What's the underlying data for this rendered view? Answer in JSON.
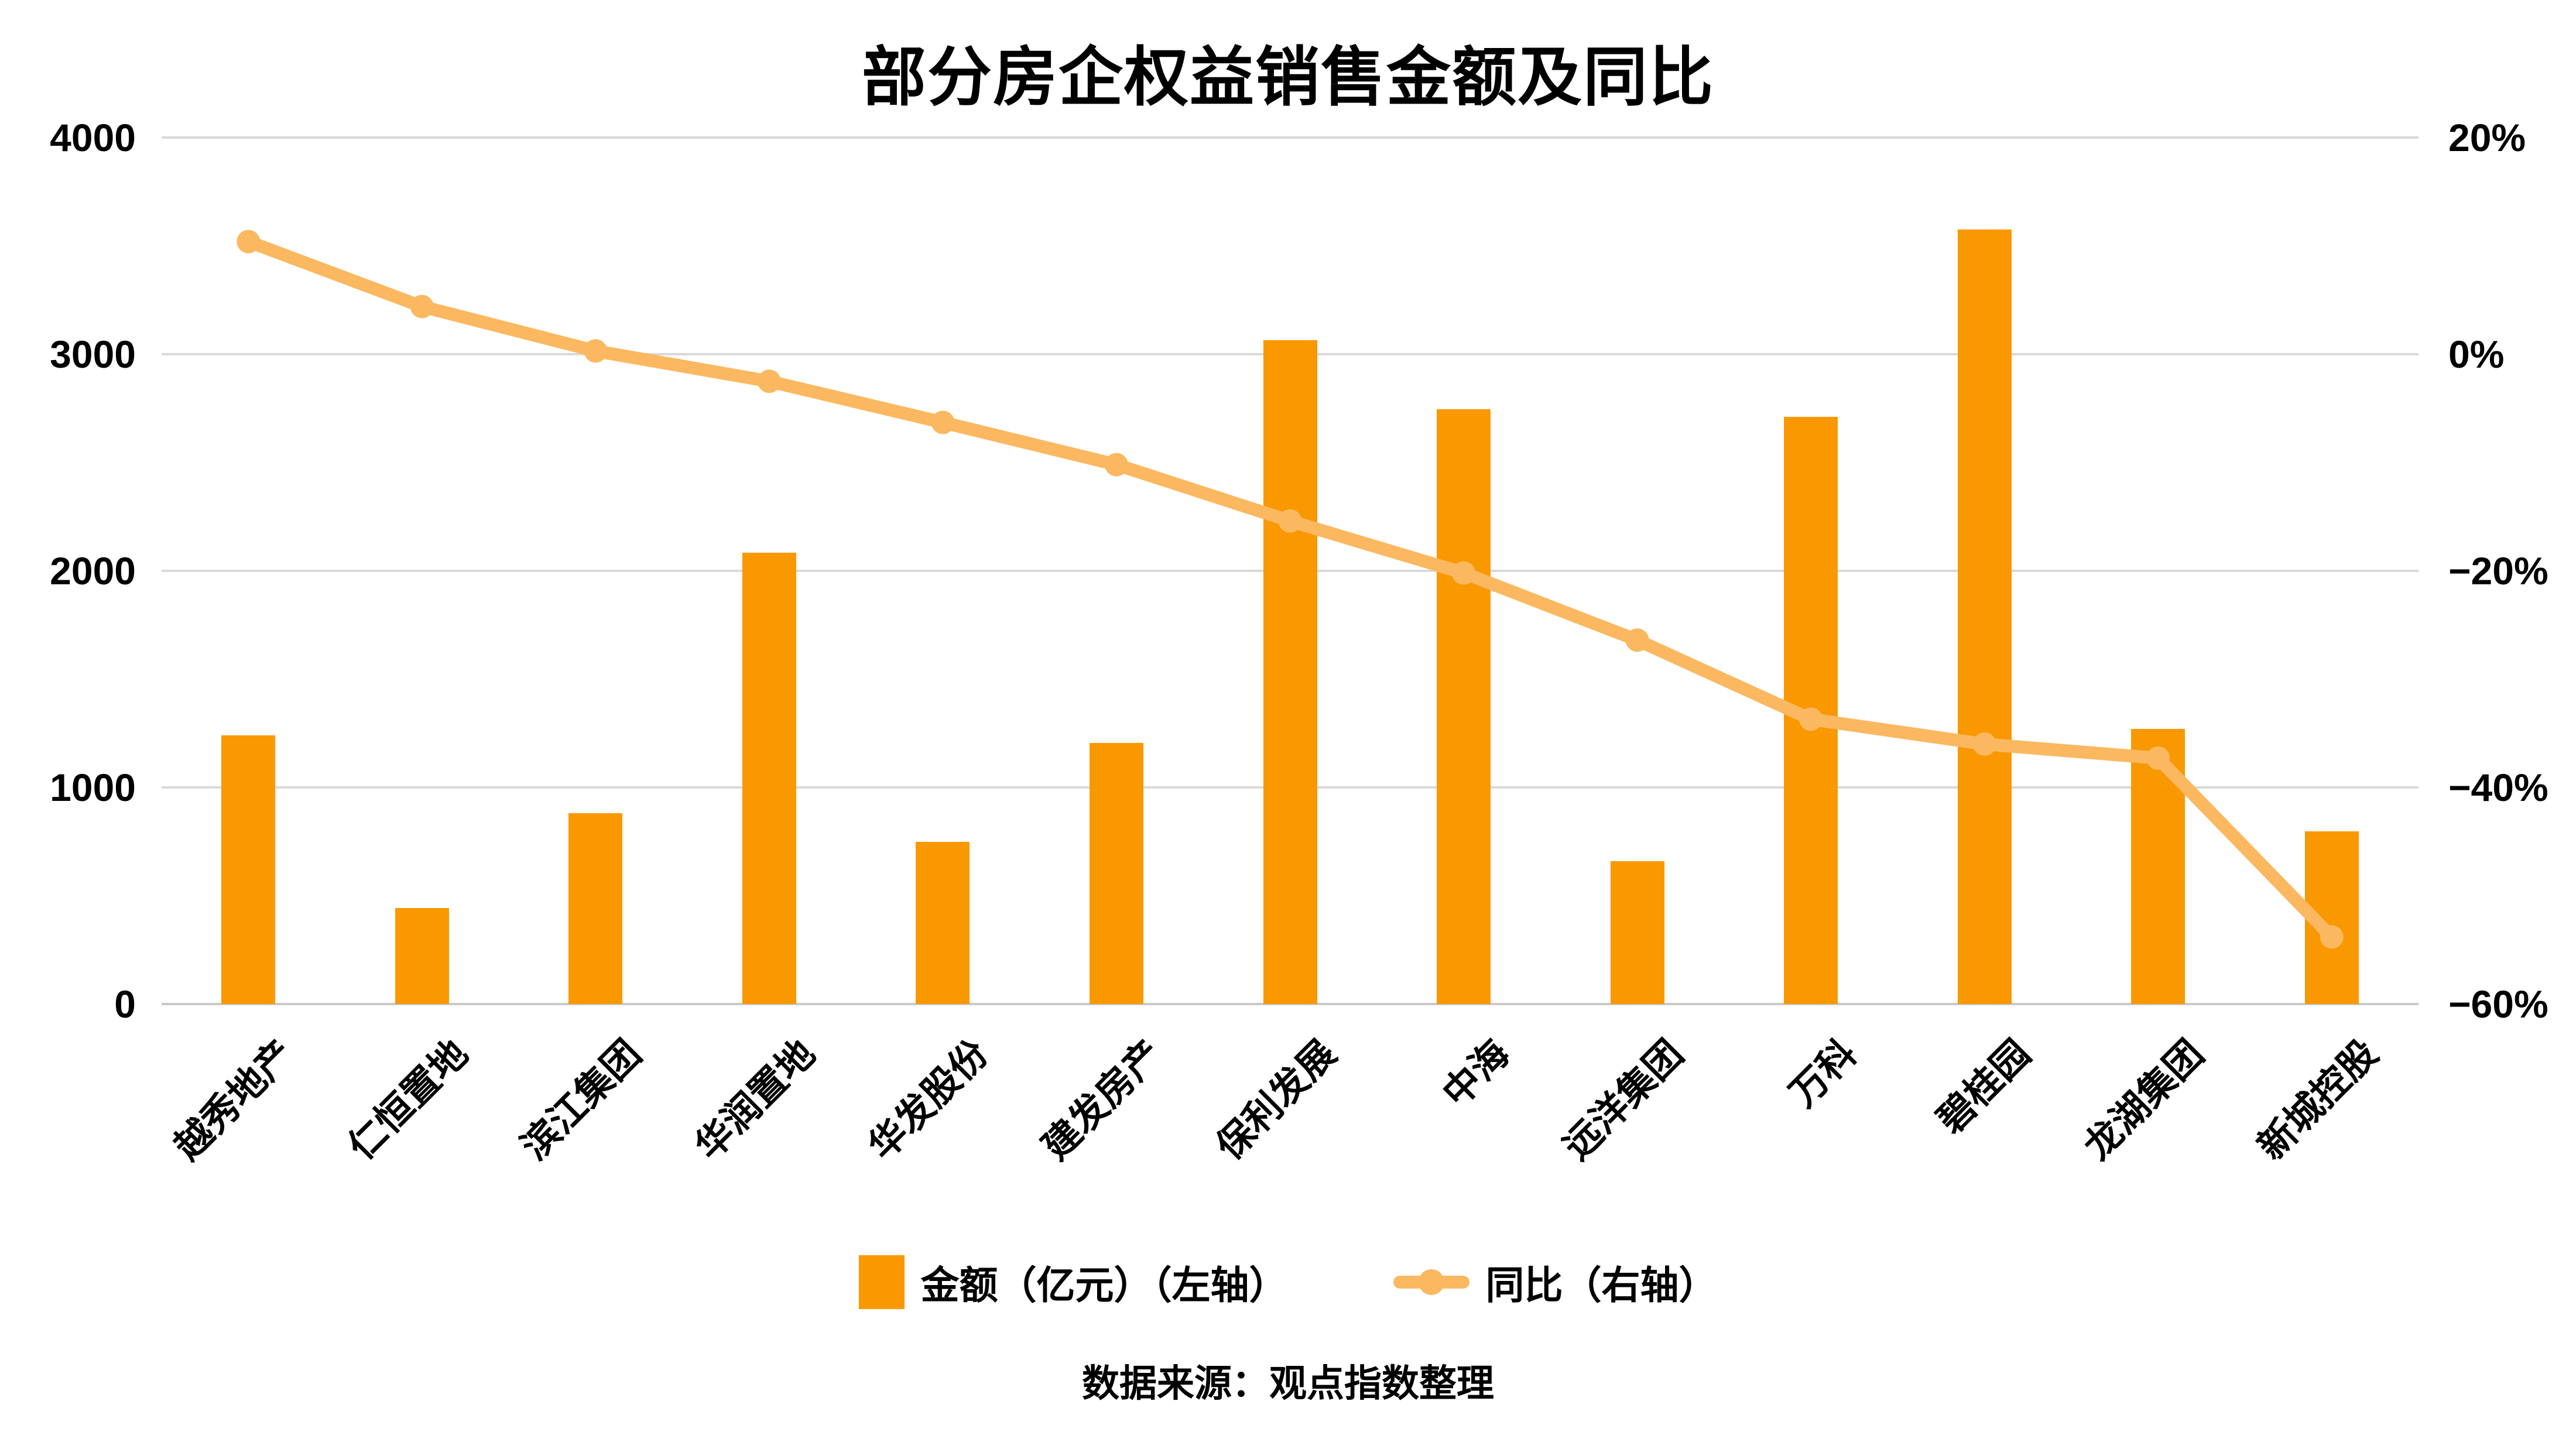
{
  "title": "部分房企权益销售金额及同比",
  "legend": {
    "bar_label": "金额（亿元）（左轴）",
    "line_label": "同比（右轴）"
  },
  "source": "数据来源：观点指数整理",
  "colors": {
    "bar": "#F99800",
    "line": "#FBB860",
    "grid": "#D9D9D9",
    "text": "#000000"
  },
  "chart_data": {
    "type": "bar",
    "subtype": "combo-bar-line-dual-axis",
    "title": "部分房企权益销售金额及同比",
    "categories": [
      "越秀地产",
      "仁恒置地",
      "滨江集团",
      "华润置地",
      "华发股份",
      "建发房产",
      "保利发展",
      "中海",
      "远洋集团",
      "万科",
      "碧桂园",
      "龙湖集团",
      "新城控股"
    ],
    "series": [
      {
        "name": "金额（亿元）（左轴）",
        "type": "bar",
        "axis": "left",
        "values": [
          1240,
          442,
          880,
          2085,
          750,
          1205,
          3065,
          2745,
          660,
          2710,
          3575,
          1270,
          798
        ]
      },
      {
        "name": "同比（右轴）",
        "type": "line",
        "axis": "right",
        "unit": "%",
        "values": [
          10.4,
          4.4,
          0.3,
          -2.5,
          -6.3,
          -10.2,
          -15.4,
          -20.2,
          -26.4,
          -33.7,
          -36.0,
          -37.3,
          -53.8
        ]
      }
    ],
    "left_axis": {
      "ticks": [
        0,
        1000,
        2000,
        3000,
        4000
      ],
      "range": [
        0,
        4000
      ]
    },
    "right_axis": {
      "tick_labels": [
        "20%",
        "0%",
        "−20%",
        "−40%",
        "−60%"
      ],
      "tick_values": [
        20,
        0,
        -20,
        -40,
        -60
      ],
      "range": [
        -60,
        20
      ]
    },
    "grid": true,
    "legend_position": "bottom"
  }
}
